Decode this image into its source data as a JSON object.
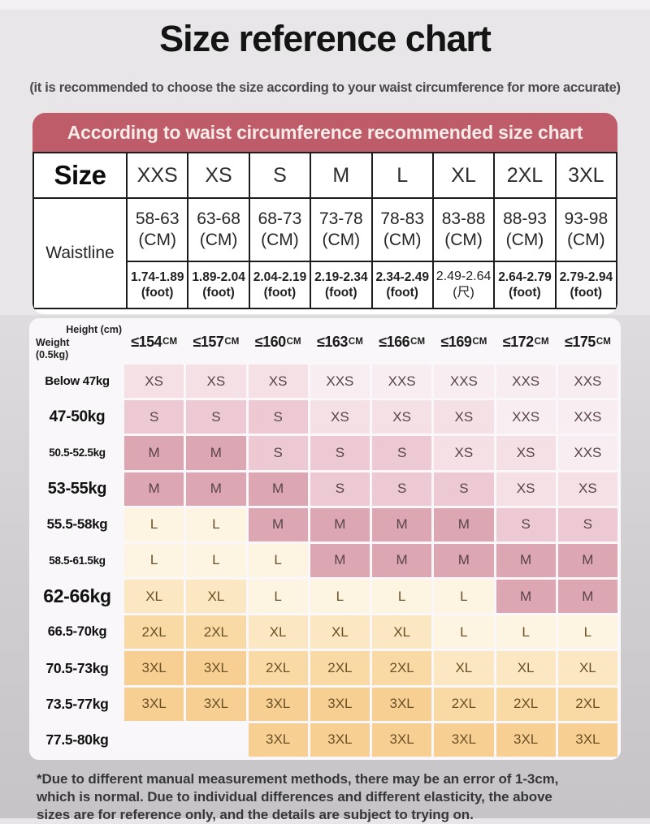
{
  "page": {
    "title": "Size reference chart",
    "subtitle": "(it is recommended to choose the size according to your waist circumference for more accurate)",
    "footnote_lines": [
      "*Due to different manual measurement methods, there may be an error of 1-3cm,",
      "which is normal. Due to individual differences and different elasticity, the above",
      "sizes are for reference only, and the details are subject to trying on."
    ]
  },
  "chart_data": [
    {
      "type": "table",
      "banner": "According to waist circumference recommended size chart",
      "corner_label": "Size",
      "row_label": "Waistline",
      "sizes": [
        "XXS",
        "XS",
        "S",
        "M",
        "L",
        "XL",
        "2XL",
        "3XL"
      ],
      "cm": [
        {
          "range": "58-63",
          "unit": "(CM)"
        },
        {
          "range": "63-68",
          "unit": "(CM)"
        },
        {
          "range": "68-73",
          "unit": "(CM)"
        },
        {
          "range": "73-78",
          "unit": "(CM)"
        },
        {
          "range": "78-83",
          "unit": "(CM)"
        },
        {
          "range": "83-88",
          "unit": "(CM)"
        },
        {
          "range": "88-93",
          "unit": "(CM)"
        },
        {
          "range": "93-98",
          "unit": "(CM)"
        }
      ],
      "foot": [
        {
          "range": "1.74-1.89",
          "unit": "(foot)"
        },
        {
          "range": "1.89-2.04",
          "unit": "(foot)"
        },
        {
          "range": "2.04-2.19",
          "unit": "(foot)"
        },
        {
          "range": "2.19-2.34",
          "unit": "(foot)"
        },
        {
          "range": "2.34-2.49",
          "unit": "(foot)"
        },
        {
          "range": "2.49-2.64",
          "unit": "(尺)"
        },
        {
          "range": "2.64-2.79",
          "unit": "(foot)"
        },
        {
          "range": "2.79-2.94",
          "unit": "(foot)"
        }
      ]
    },
    {
      "type": "table",
      "height_label": "Height (cm)",
      "weight_label": "Weight (0.5kg)",
      "height_cols": [
        {
          "value": "≤154",
          "unit": "CM"
        },
        {
          "value": "≤157",
          "unit": "CM"
        },
        {
          "value": "≤160",
          "unit": "CM"
        },
        {
          "value": "≤163",
          "unit": "CM"
        },
        {
          "value": "≤166",
          "unit": "CM"
        },
        {
          "value": "≤169",
          "unit": "CM"
        },
        {
          "value": "≤172",
          "unit": "CM"
        },
        {
          "value": "≤175",
          "unit": "CM"
        }
      ],
      "rows": [
        {
          "weight": "Below 47kg",
          "cells": [
            "XS",
            "XS",
            "XS",
            "XXS",
            "XXS",
            "XXS",
            "XXS",
            "XXS"
          ]
        },
        {
          "weight": "47-50kg",
          "cells": [
            "S",
            "S",
            "S",
            "XS",
            "XS",
            "XS",
            "XXS",
            "XXS"
          ]
        },
        {
          "weight": "50.5-52.5kg",
          "cells": [
            "M",
            "M",
            "S",
            "S",
            "S",
            "XS",
            "XS",
            "XXS"
          ]
        },
        {
          "weight": "53-55kg",
          "cells": [
            "M",
            "M",
            "M",
            "S",
            "S",
            "S",
            "XS",
            "XS"
          ]
        },
        {
          "weight": "55.5-58kg",
          "cells": [
            "L",
            "L",
            "M",
            "M",
            "M",
            "M",
            "S",
            "S"
          ]
        },
        {
          "weight": "58.5-61.5kg",
          "cells": [
            "L",
            "L",
            "L",
            "M",
            "M",
            "M",
            "M",
            "M"
          ]
        },
        {
          "weight": "62-66kg",
          "cells": [
            "XL",
            "XL",
            "L",
            "L",
            "L",
            "L",
            "M",
            "M"
          ]
        },
        {
          "weight": "66.5-70kg",
          "cells": [
            "2XL",
            "2XL",
            "XL",
            "XL",
            "XL",
            "L",
            "L",
            "L"
          ]
        },
        {
          "weight": "70.5-73kg",
          "cells": [
            "3XL",
            "3XL",
            "2XL",
            "2XL",
            "2XL",
            "XL",
            "XL",
            "XL"
          ]
        },
        {
          "weight": "73.5-77kg",
          "cells": [
            "3XL",
            "3XL",
            "3XL",
            "3XL",
            "3XL",
            "2XL",
            "2XL",
            "2XL"
          ]
        },
        {
          "weight": "77.5-80kg",
          "cells": [
            "",
            "",
            "3XL",
            "3XL",
            "3XL",
            "3XL",
            "3XL",
            "3XL"
          ]
        }
      ]
    }
  ],
  "colors": {
    "banner": "#bf5c69",
    "XXS": "#f8edf0",
    "XS": "#f5e0e5",
    "S": "#edcad3",
    "M": "#dca6b2",
    "L": "#fdf4e1",
    "XL": "#fbe7c1",
    "2XL": "#fadaa4",
    "3XL": "#f8cf93"
  }
}
